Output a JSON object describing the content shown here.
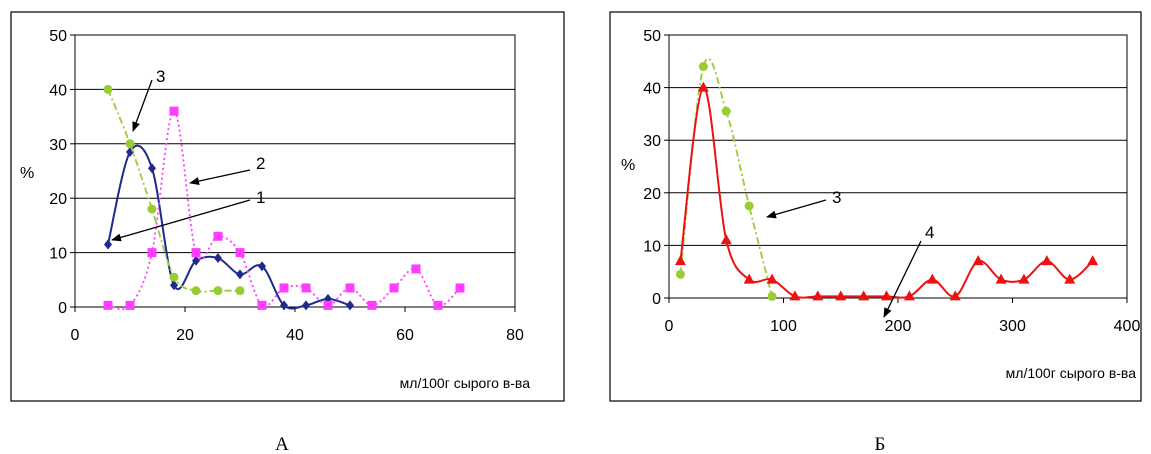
{
  "chart_data": [
    {
      "panel_label": "А",
      "type": "line",
      "xlabel": "мл/100г сырого в-ва",
      "ylabel": "%",
      "xlim": [
        0,
        80
      ],
      "ylim": [
        0,
        50
      ],
      "xticks": [
        0,
        20,
        40,
        60,
        80
      ],
      "yticks": [
        0,
        10,
        20,
        30,
        40,
        50
      ],
      "grid": "horizontal",
      "series": [
        {
          "name": "1",
          "color": "#1f2a8a",
          "marker": "diamond",
          "line": "solid",
          "x": [
            6,
            10,
            14,
            18,
            22,
            26,
            30,
            34,
            38,
            42,
            46,
            50
          ],
          "y": [
            11.5,
            28.5,
            25.5,
            4,
            8.5,
            9,
            6,
            7.5,
            0.3,
            0.3,
            1.5,
            0.3
          ]
        },
        {
          "name": "2",
          "color": "#ff3cff",
          "marker": "square",
          "line": "dotted",
          "x": [
            6,
            10,
            14,
            18,
            22,
            26,
            30,
            34,
            38,
            42,
            46,
            50,
            54,
            58,
            62,
            66,
            70
          ],
          "y": [
            0.3,
            0.3,
            10,
            36,
            10,
            13,
            10,
            0.3,
            3.5,
            3.5,
            0.3,
            3.5,
            0.3,
            3.5,
            7,
            0.3,
            3.5
          ]
        },
        {
          "name": "3",
          "color": "#99cc33",
          "marker": "circle",
          "line": "dash-dot",
          "x": [
            6,
            10,
            14,
            18,
            22,
            26,
            30
          ],
          "y": [
            40,
            30,
            18,
            5.5,
            3,
            3,
            3
          ]
        }
      ],
      "annotations": [
        "1",
        "2",
        "3"
      ]
    },
    {
      "panel_label": "Б",
      "type": "line",
      "xlabel": "мл/100г сырого в-ва",
      "ylabel": "%",
      "xlim": [
        0,
        400
      ],
      "ylim": [
        0,
        50
      ],
      "xticks": [
        0,
        100,
        200,
        300,
        400
      ],
      "yticks": [
        0,
        10,
        20,
        30,
        40,
        50
      ],
      "grid": "horizontal",
      "series": [
        {
          "name": "3",
          "color": "#99cc33",
          "marker": "circle",
          "line": "dash-dot",
          "x": [
            10,
            30,
            50,
            70,
            90
          ],
          "y": [
            4.5,
            44,
            35.5,
            17.5,
            0.3
          ]
        },
        {
          "name": "4",
          "color": "#ee1111",
          "marker": "triangle",
          "line": "solid",
          "x": [
            10,
            30,
            50,
            70,
            90,
            110,
            130,
            150,
            170,
            190,
            210,
            230,
            250,
            270,
            290,
            310,
            330,
            350,
            370
          ],
          "y": [
            7,
            40,
            11,
            3.5,
            3.5,
            0.3,
            0.3,
            0.3,
            0.3,
            0.3,
            0.3,
            3.5,
            0.3,
            7,
            3.5,
            3.5,
            7,
            3.5,
            7
          ]
        }
      ],
      "annotations": [
        "3",
        "4"
      ]
    }
  ]
}
